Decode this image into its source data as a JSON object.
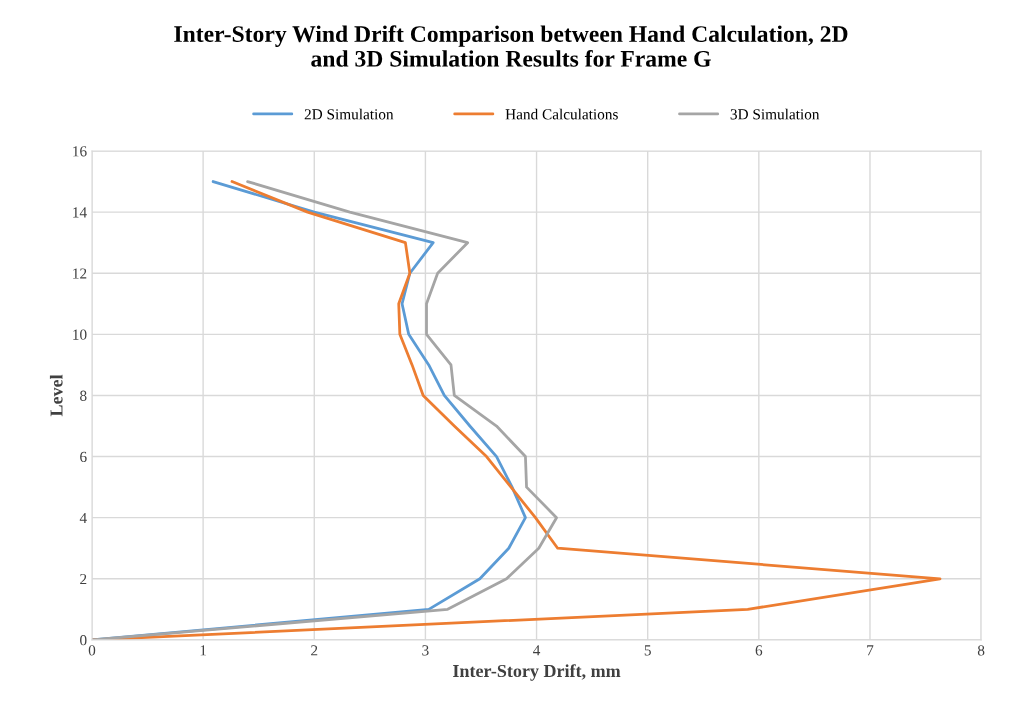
{
  "chart_data": {
    "type": "line",
    "title": "Inter-Story Wind Drift Comparison between Hand Calculation, 2D\nand 3D Simulation Results for Frame G",
    "xlabel": "Inter-Story Drift, mm",
    "ylabel": "Level",
    "xlim": [
      0,
      8
    ],
    "xticks": [
      0,
      1,
      2,
      3,
      4,
      5,
      6,
      7,
      8
    ],
    "ylim": [
      0,
      16
    ],
    "yticks": [
      0,
      2,
      4,
      6,
      8,
      10,
      12,
      14,
      16
    ],
    "grid": true,
    "legend": "top",
    "marker": "none",
    "line_style": "solid",
    "series": [
      {
        "name": "2D Simulation",
        "color": "#5b9bd5",
        "x": [
          0,
          3.03,
          3.49,
          3.75,
          3.9,
          3.78,
          3.64,
          3.4,
          3.17,
          3.03,
          2.85,
          2.79,
          2.86,
          3.07,
          2.0,
          1.09
        ],
        "values": [
          0,
          1,
          2,
          3,
          4,
          5,
          6,
          7,
          8,
          9,
          10,
          11,
          12,
          13,
          14,
          15
        ]
      },
      {
        "name": "Hand Calculations",
        "color": "#ed7d31",
        "x": [
          0,
          5.9,
          7.63,
          4.19,
          3.99,
          3.77,
          3.55,
          3.26,
          2.98,
          2.88,
          2.77,
          2.76,
          2.86,
          2.82,
          1.94,
          1.26
        ],
        "values": [
          0,
          1,
          2,
          3,
          4,
          5,
          6,
          7,
          8,
          9,
          10,
          11,
          12,
          13,
          14,
          15
        ]
      },
      {
        "name": "3D Simulation",
        "color": "#a5a5a5",
        "x": [
          0,
          3.2,
          3.73,
          4.02,
          4.18,
          3.91,
          3.9,
          3.64,
          3.26,
          3.23,
          3.01,
          3.01,
          3.11,
          3.38,
          2.32,
          1.4
        ],
        "values": [
          0,
          1,
          2,
          3,
          4,
          5,
          6,
          7,
          8,
          9,
          10,
          11,
          12,
          13,
          14,
          15
        ]
      }
    ]
  }
}
